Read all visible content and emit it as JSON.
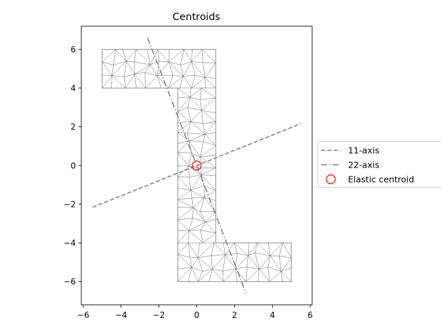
{
  "chart_data": {
    "type": "line",
    "title": "Centroids",
    "xlabel": "",
    "ylabel": "",
    "xlim": [
      -6.1,
      6.1
    ],
    "ylim": [
      -7.2,
      7.2
    ],
    "xticks": [
      -6,
      -4,
      -2,
      0,
      2,
      4,
      6
    ],
    "yticks": [
      -6,
      -4,
      -2,
      0,
      2,
      4,
      6
    ],
    "xtick_labels": [
      "−6",
      "−4",
      "−2",
      "0",
      "2",
      "4",
      "6"
    ],
    "ytick_labels": [
      "−6",
      "−4",
      "−2",
      "0",
      "2",
      "4",
      "6"
    ],
    "grid": false,
    "legend_position": "outside right",
    "section_outline": [
      [
        -5,
        6
      ],
      [
        1,
        6
      ],
      [
        1,
        -4
      ],
      [
        5,
        -4
      ],
      [
        5,
        -6
      ],
      [
        -1,
        -6
      ],
      [
        -1,
        4
      ],
      [
        -5,
        4
      ]
    ],
    "mesh_color": "#808080",
    "series": [
      {
        "name": "11-axis",
        "style": "dashed",
        "color": "#808080",
        "x": [
          -5.5,
          5.5
        ],
        "y": [
          -2.16,
          2.16
        ]
      },
      {
        "name": "22-axis",
        "style": "dashdot",
        "color": "#808080",
        "x": [
          -2.6,
          2.6
        ],
        "y": [
          6.6,
          -6.6
        ]
      },
      {
        "name": "Elastic centroid",
        "style": "marker-circle",
        "color": "#ff0000",
        "x": [
          0
        ],
        "y": [
          0
        ]
      }
    ]
  }
}
